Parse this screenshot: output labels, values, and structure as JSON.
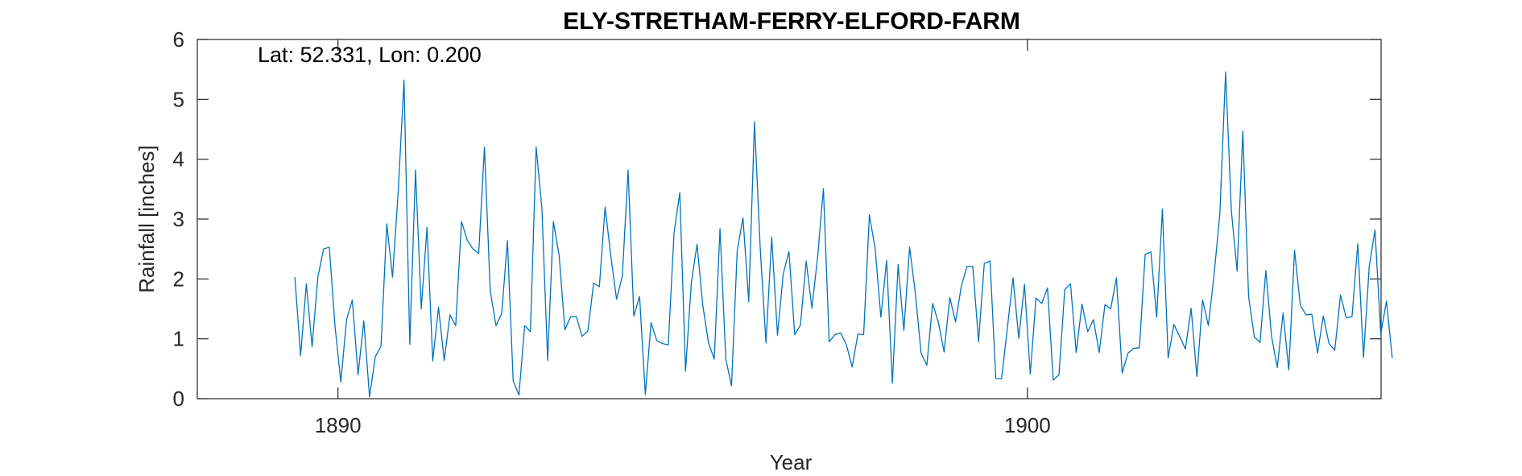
{
  "chart_data": {
    "type": "line",
    "title": "ELY-STRETHAM-FERRY-ELFORD-FARM",
    "xlabel": "Year",
    "ylabel": "Rainfall [inches]",
    "annotation": "Lat: 52.331, Lon: 0.200",
    "xlim": [
      1887.96,
      1905.13
    ],
    "ylim": [
      0,
      6
    ],
    "xticks": [
      1890,
      1900
    ],
    "yticks": [
      0,
      1,
      2,
      3,
      4,
      5,
      6
    ],
    "grid": false,
    "series_color": "#0072BD",
    "series": [
      {
        "start_year": 1889.375,
        "step_years": 0.0833333,
        "values": [
          2.03,
          0.72,
          1.92,
          0.87,
          2.03,
          2.5,
          2.53,
          1.2,
          0.28,
          1.32,
          1.65,
          0.4,
          1.3,
          0.03,
          0.7,
          0.88,
          2.92,
          2.03,
          3.48,
          5.32,
          0.91,
          3.82,
          1.5,
          2.86,
          0.63,
          1.53,
          0.64,
          1.4,
          1.22,
          2.96,
          2.65,
          2.5,
          2.43,
          4.2,
          1.81,
          1.22,
          1.42,
          2.64,
          0.3,
          0.06,
          1.22,
          1.12,
          4.2,
          3.18,
          0.64,
          2.96,
          2.39,
          1.15,
          1.37,
          1.37,
          1.04,
          1.13,
          1.93,
          1.87,
          3.2,
          2.38,
          1.66,
          2.05,
          3.82,
          1.38,
          1.71,
          0.07,
          1.27,
          0.97,
          0.92,
          0.9,
          2.77,
          3.44,
          0.46,
          1.93,
          2.58,
          1.56,
          0.93,
          0.66,
          2.84,
          0.67,
          0.21,
          2.48,
          3.02,
          1.62,
          4.62,
          2.51,
          0.93,
          2.7,
          1.06,
          2.08,
          2.46,
          1.07,
          1.23,
          2.3,
          1.51,
          2.38,
          3.51,
          0.95,
          1.07,
          1.1,
          0.9,
          0.53,
          1.08,
          1.07,
          3.07,
          2.51,
          1.36,
          2.31,
          0.26,
          2.24,
          1.14,
          2.53,
          1.76,
          0.76,
          0.56,
          1.59,
          1.28,
          0.78,
          1.69,
          1.28,
          1.88,
          2.21,
          2.21,
          0.95,
          2.26,
          2.3,
          0.34,
          0.33,
          1.17,
          2.02,
          1.01,
          1.91,
          0.41,
          1.68,
          1.59,
          1.85,
          0.31,
          0.4,
          1.82,
          1.92,
          0.77,
          1.58,
          1.12,
          1.32,
          0.77,
          1.57,
          1.5,
          2.02,
          0.43,
          0.76,
          0.84,
          0.85,
          2.41,
          2.45,
          1.36,
          3.17,
          0.68,
          1.24,
          1.04,
          0.83,
          1.51,
          0.37,
          1.65,
          1.22,
          2.08,
          3.09,
          5.46,
          3.14,
          2.13,
          4.47,
          1.71,
          1.03,
          0.94,
          2.14,
          1.04,
          0.52,
          1.43,
          0.48,
          2.48,
          1.56,
          1.4,
          1.41,
          0.76,
          1.38,
          0.92,
          0.81,
          1.73,
          1.35,
          1.37,
          2.59,
          0.69,
          2.21,
          2.82,
          1.08,
          1.63,
          0.68
        ]
      }
    ]
  }
}
